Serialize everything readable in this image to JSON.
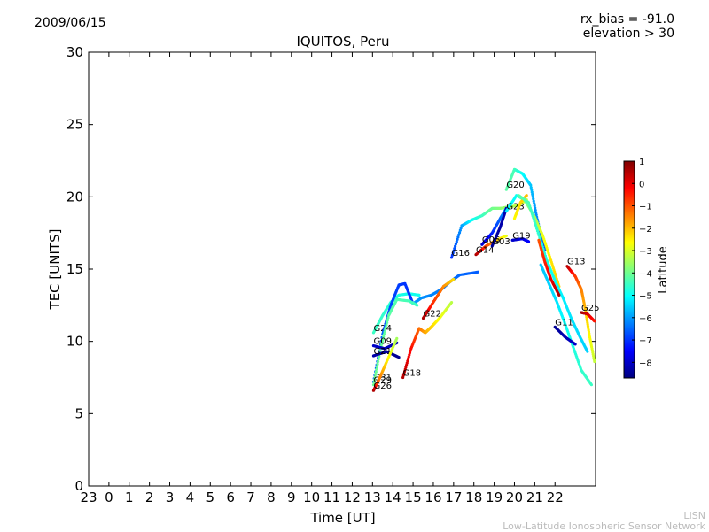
{
  "header": {
    "date": "2009/06/15",
    "rx_bias": "rx_bias = -91.0",
    "elevation": "elevation > 30"
  },
  "footer": {
    "line1": "LISN",
    "line2": "Low-Latitude Ionospheric Sensor Network"
  },
  "chart_data": {
    "type": "scatter",
    "title": "IQUITOS, Peru",
    "xlabel": "Time [UT]",
    "ylabel": "TEC [UNITS]",
    "xlim": [
      -1,
      24
    ],
    "ylim": [
      0,
      30
    ],
    "x_tick_values": [
      -1,
      0,
      1,
      2,
      3,
      4,
      5,
      6,
      7,
      8,
      9,
      10,
      11,
      12,
      13,
      14,
      15,
      16,
      17,
      18,
      19,
      20,
      21,
      22
    ],
    "x_tick_labels": [
      "23",
      "0",
      "1",
      "2",
      "3",
      "4",
      "5",
      "6",
      "7",
      "8",
      "9",
      "10",
      "11",
      "12",
      "13",
      "14",
      "15",
      "16",
      "17",
      "18",
      "19",
      "20",
      "21",
      "22"
    ],
    "y_ticks": [
      0,
      5,
      10,
      15,
      20,
      25,
      30
    ],
    "colorbar": {
      "label": "Latitude",
      "range": [
        -8.7,
        1
      ],
      "ticks": [
        1,
        0,
        -1,
        -2,
        -3,
        -4,
        -5,
        -6,
        -7,
        -8
      ],
      "colors": [
        "#00007f",
        "#0000ff",
        "#007fff",
        "#00ffff",
        "#7fff7f",
        "#ffff00",
        "#ff7f00",
        "#ff0000",
        "#7f0000"
      ]
    },
    "series": [
      {
        "name": "G24",
        "lat": [
          -4.5,
          -4.6,
          -4.7,
          -4.8,
          -4.9,
          -4.9
        ],
        "points": [
          [
            13.05,
            10.6
          ],
          [
            13.5,
            11.8
          ],
          [
            13.9,
            12.7
          ],
          [
            14.3,
            13.2
          ],
          [
            14.8,
            13.3
          ],
          [
            15.3,
            13.2
          ]
        ]
      },
      {
        "name": "G31",
        "lat": [
          -6.5,
          -6.6,
          -6.8,
          -6.9,
          -7.0,
          -7.0
        ],
        "points": [
          [
            13.05,
            7.2
          ],
          [
            13.5,
            10.5
          ],
          [
            13.9,
            12.5
          ],
          [
            14.3,
            13.9
          ],
          [
            14.6,
            14.0
          ],
          [
            15.0,
            12.6
          ]
        ]
      },
      {
        "name": "",
        "lat": [
          -6.0,
          -6.1,
          -6.2,
          -6.3,
          -6.4,
          -6.5,
          -6.6
        ],
        "points": [
          [
            15.0,
            12.6
          ],
          [
            15.4,
            13.0
          ],
          [
            15.9,
            13.2
          ],
          [
            16.4,
            13.6
          ],
          [
            16.8,
            14.1
          ],
          [
            17.3,
            14.6
          ],
          [
            18.2,
            14.8
          ]
        ]
      },
      {
        "name": "G29",
        "lat": [
          -4.0,
          -4.1,
          -4.2,
          -4.3,
          -4.4,
          -4.5
        ],
        "points": [
          [
            13.05,
            7.0
          ],
          [
            13.4,
            9.5
          ],
          [
            13.8,
            11.8
          ],
          [
            14.2,
            12.9
          ],
          [
            14.8,
            12.8
          ],
          [
            15.2,
            12.5
          ]
        ]
      },
      {
        "name": "G09",
        "lat": [
          -8.0,
          -8.1,
          -8.2
        ],
        "points": [
          [
            13.05,
            9.7
          ],
          [
            13.6,
            9.5
          ],
          [
            14.2,
            9.9
          ]
        ]
      },
      {
        "name": "G21",
        "lat": [
          -8.3,
          -8.4,
          -8.5
        ],
        "points": [
          [
            13.05,
            9.0
          ],
          [
            13.7,
            9.3
          ],
          [
            14.3,
            8.9
          ]
        ]
      },
      {
        "name": "G26",
        "lat": [
          0.6,
          -1.2,
          -2.4,
          -3.5
        ],
        "points": [
          [
            13.05,
            6.6
          ],
          [
            13.3,
            7.3
          ],
          [
            13.7,
            8.6
          ],
          [
            14.2,
            10.2
          ]
        ]
      },
      {
        "name": "G18",
        "lat": [
          0.5,
          -0.3,
          -1.2,
          -1.8,
          -2.2,
          -2.7,
          -3.3
        ],
        "points": [
          [
            14.5,
            7.5
          ],
          [
            14.9,
            9.5
          ],
          [
            15.3,
            10.9
          ],
          [
            15.6,
            10.6
          ],
          [
            15.9,
            11.0
          ],
          [
            16.3,
            11.6
          ],
          [
            16.9,
            12.7
          ]
        ]
      },
      {
        "name": "G22",
        "lat": [
          0.6,
          -0.5,
          -1.5,
          -2.3
        ],
        "points": [
          [
            15.5,
            11.6
          ],
          [
            15.9,
            12.5
          ],
          [
            16.5,
            13.8
          ],
          [
            17.0,
            14.3
          ]
        ]
      },
      {
        "name": "G16",
        "lat": [
          -7.0,
          -6.0,
          -5.0,
          -4.5,
          -4.0,
          -3.8,
          -3.5,
          -3.3,
          -3.0
        ],
        "points": [
          [
            16.9,
            15.8
          ],
          [
            17.4,
            18.0
          ],
          [
            17.9,
            18.4
          ],
          [
            18.4,
            18.7
          ],
          [
            18.9,
            19.2
          ],
          [
            19.3,
            19.2
          ],
          [
            19.7,
            19.3
          ],
          [
            20.2,
            19.4
          ],
          [
            20.6,
            19.8
          ]
        ]
      },
      {
        "name": "G14",
        "lat": [
          0.6,
          -0.8,
          -2.0,
          -2.8
        ],
        "points": [
          [
            18.1,
            16.0
          ],
          [
            18.6,
            16.6
          ],
          [
            19.1,
            17.0
          ],
          [
            19.6,
            17.3
          ]
        ]
      },
      {
        "name": "G06",
        "lat": [
          -8.0,
          -7.2,
          -6.5,
          -6.0
        ],
        "points": [
          [
            18.4,
            16.7
          ],
          [
            18.9,
            17.5
          ],
          [
            19.3,
            18.5
          ],
          [
            19.6,
            19.2
          ]
        ]
      },
      {
        "name": "G03",
        "lat": [
          -8.5,
          -8.3,
          -8.2
        ],
        "points": [
          [
            18.9,
            16.6
          ],
          [
            19.3,
            17.9
          ],
          [
            19.6,
            19.2
          ]
        ]
      },
      {
        "name": "G19",
        "lat": [
          -8.0,
          -7.8,
          -7.5
        ],
        "points": [
          [
            19.9,
            17.0
          ],
          [
            20.4,
            17.1
          ],
          [
            20.7,
            16.9
          ]
        ]
      },
      {
        "name": "G20",
        "lat": [
          -4.2,
          -4.4,
          -5.0,
          -5.6,
          -6.2,
          -6.8
        ],
        "points": [
          [
            19.6,
            20.5
          ],
          [
            20.0,
            21.9
          ],
          [
            20.4,
            21.6
          ],
          [
            20.8,
            20.8
          ],
          [
            21.1,
            18.6
          ],
          [
            21.5,
            16.3
          ]
        ]
      },
      {
        "name": "G23",
        "lat": [
          -5.2,
          -5.0,
          -4.2,
          -3.5,
          -2.8,
          -2.4,
          -2.2
        ],
        "points": [
          [
            19.6,
            19.0
          ],
          [
            20.1,
            20.1
          ],
          [
            20.5,
            19.8
          ],
          [
            21.0,
            18.6
          ],
          [
            21.4,
            17.3
          ],
          [
            21.8,
            15.6
          ],
          [
            22.2,
            13.8
          ]
        ]
      },
      {
        "name": "",
        "lat": [
          -2.6,
          -2.3,
          -2.0
        ],
        "points": [
          [
            20.0,
            18.5
          ],
          [
            20.3,
            19.6
          ],
          [
            20.6,
            20.1
          ]
        ]
      },
      {
        "name": "",
        "lat": [
          -4.2,
          -4.4,
          -4.6,
          -4.8,
          -5.0,
          -5.2,
          -5.3,
          -5.4,
          -5.5
        ],
        "points": [
          [
            20.2,
            20.1
          ],
          [
            20.7,
            19.6
          ],
          [
            21.1,
            17.8
          ],
          [
            21.6,
            15.6
          ],
          [
            22.0,
            14.2
          ],
          [
            22.4,
            13.0
          ],
          [
            22.8,
            11.6
          ],
          [
            23.2,
            10.4
          ],
          [
            23.6,
            9.3
          ]
        ]
      },
      {
        "name": "",
        "lat": [
          -5.6,
          -5.5,
          -5.3,
          -5.0,
          -4.8,
          -4.6,
          -4.5
        ],
        "points": [
          [
            21.3,
            15.3
          ],
          [
            21.7,
            14.0
          ],
          [
            22.1,
            12.7
          ],
          [
            22.5,
            11.2
          ],
          [
            22.9,
            9.6
          ],
          [
            23.3,
            8.0
          ],
          [
            23.8,
            7.0
          ]
        ]
      },
      {
        "name": "",
        "lat": [
          -1.0,
          -0.5,
          0.0,
          0.5
        ],
        "points": [
          [
            21.2,
            17.0
          ],
          [
            21.5,
            15.5
          ],
          [
            21.8,
            14.3
          ],
          [
            22.2,
            13.2
          ]
        ]
      },
      {
        "name": "G13",
        "lat": [
          0.5,
          -0.7,
          -1.4,
          -2.0,
          -2.6,
          -3.2
        ],
        "points": [
          [
            22.6,
            15.2
          ],
          [
            23.0,
            14.5
          ],
          [
            23.3,
            13.6
          ],
          [
            23.5,
            12.2
          ],
          [
            23.7,
            10.4
          ],
          [
            23.95,
            8.6
          ]
        ]
      },
      {
        "name": "G25",
        "lat": [
          0.7,
          0.2,
          -0.4
        ],
        "points": [
          [
            23.3,
            12.0
          ],
          [
            23.6,
            11.9
          ],
          [
            23.95,
            11.4
          ]
        ]
      },
      {
        "name": "G11",
        "lat": [
          -8.5,
          -8.2,
          -8.0
        ],
        "points": [
          [
            22.0,
            11.0
          ],
          [
            22.5,
            10.3
          ],
          [
            23.0,
            9.8
          ]
        ]
      }
    ]
  }
}
